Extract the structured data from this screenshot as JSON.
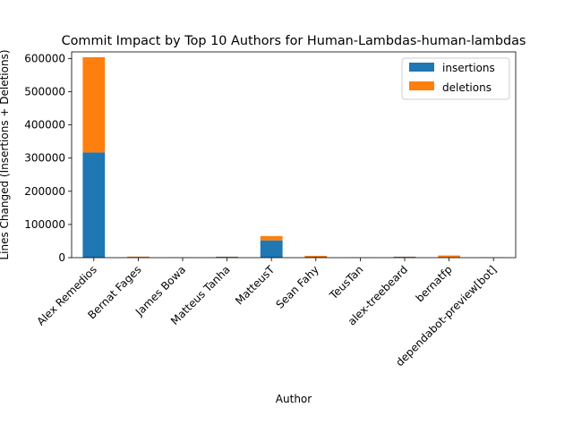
{
  "chart_data": {
    "type": "bar",
    "stacked": true,
    "title": "Commit Impact by Top 10 Authors for Human-Lambdas-human-lambdas",
    "xlabel": "Author",
    "ylabel": "Lines Changed (Insertions + Deletions)",
    "ylim": [
      0,
      620000
    ],
    "yticks": [
      0,
      100000,
      200000,
      300000,
      400000,
      500000,
      600000
    ],
    "legend_position": "top-right",
    "grid": false,
    "categories": [
      "Alex Remedios",
      "Bernat Fages",
      "James Bowa",
      "Matteus Tanha",
      "MatteusT",
      "Sean Fahy",
      "TeusTan",
      "alex-treebeard",
      "bernatfp",
      "dependabot-preview[bot]"
    ],
    "series": [
      {
        "name": "insertions",
        "color": "#1f77b4",
        "values": [
          317000,
          1200,
          300,
          2500,
          52000,
          2500,
          200,
          2500,
          1500,
          200
        ]
      },
      {
        "name": "deletions",
        "color": "#ff7f0e",
        "values": [
          287000,
          2000,
          200,
          500,
          13000,
          3000,
          100,
          500,
          5000,
          100
        ]
      }
    ]
  }
}
